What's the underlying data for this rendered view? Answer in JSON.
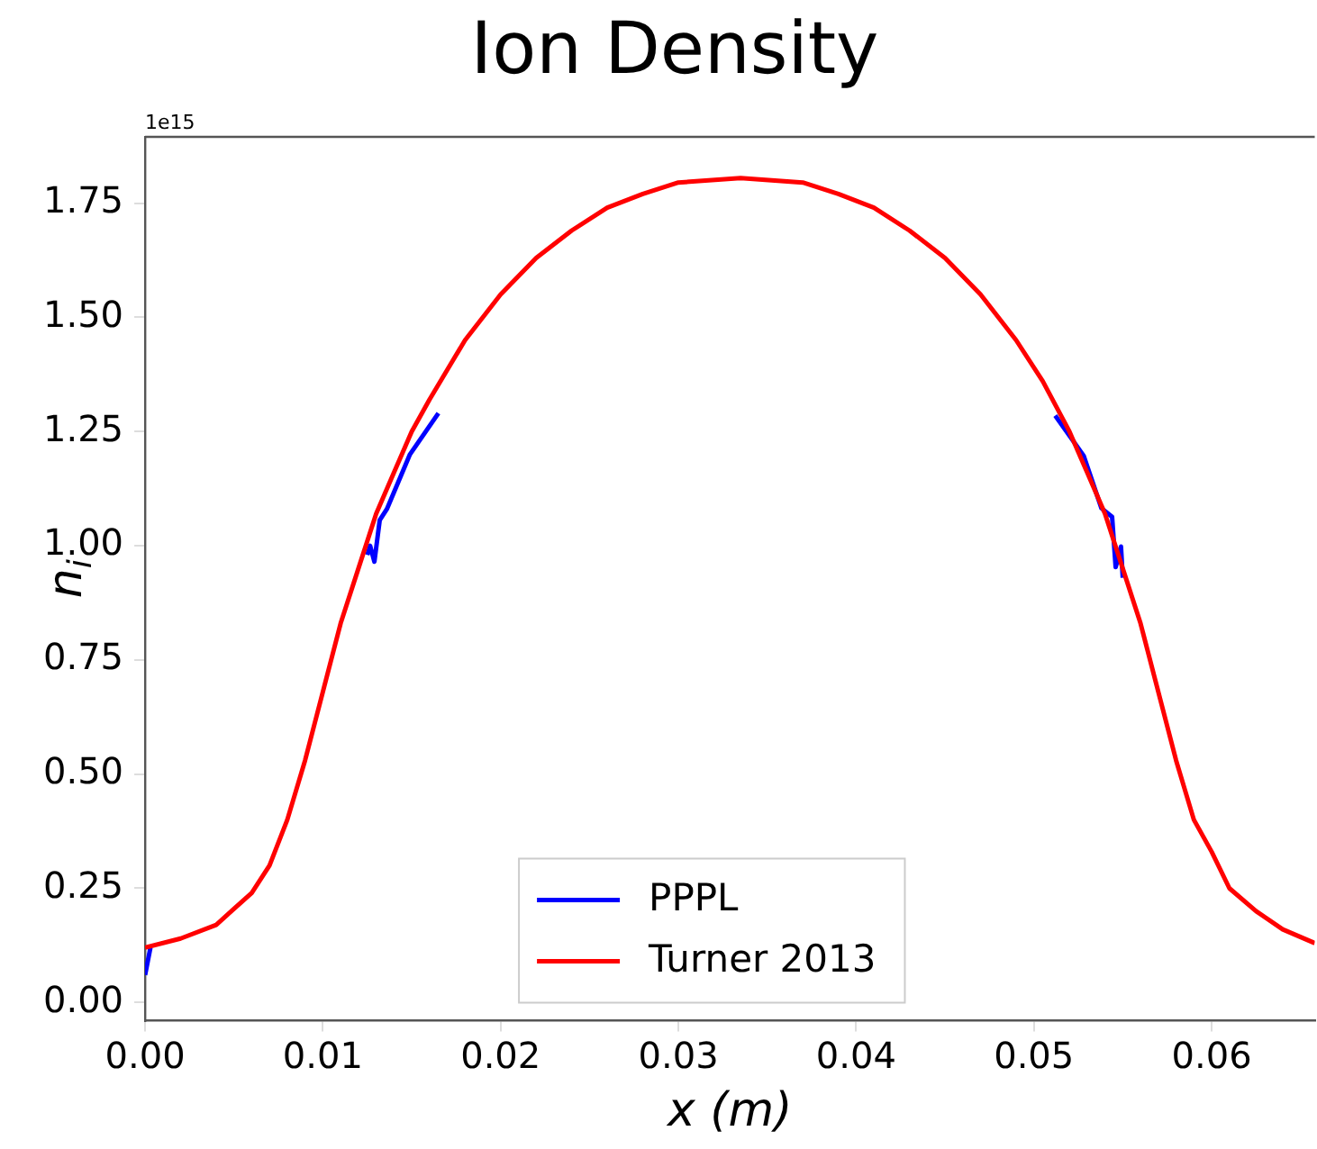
{
  "chart_data": {
    "type": "line",
    "title": "Ion Density",
    "xlabel": "x (m)",
    "ylabel": "n$_{i}$",
    "annotations": [
      "1e15"
    ],
    "xlim": [
      0,
      0.0658
    ],
    "ylim": [
      -0.04,
      1.895
    ],
    "xticks": [
      {
        "value": 0,
        "label": "0.00"
      },
      0.01,
      0.02,
      0.03,
      0.04,
      0.05,
      0.06
    ],
    "yticks": [
      {
        "value": 0,
        "label": "0.00"
      },
      0.25,
      {
        "value": 0.5,
        "label": "0.50"
      },
      0.75,
      {
        "value": 1,
        "label": "1.00"
      },
      1.25,
      {
        "value": 1.5,
        "label": "1.50"
      },
      1.75
    ],
    "grid": false,
    "legend": "bottom",
    "line_style": "solid",
    "marker": "none",
    "series": [
      {
        "name": "PPPL",
        "color": "#0000ff",
        "x": [
          0,
          0.0003,
          0.001,
          0.0125,
          0.01266,
          0.0129,
          0.0132,
          0.0136,
          0.0149,
          0.0165,
          0.017,
          0.05,
          0.0512,
          0.0528,
          0.0538,
          0.0544,
          0.0546,
          0.0549,
          0.055
        ],
        "values": [
          0.06,
          0.12,
          null,
          0.98,
          1.0,
          0.965,
          1.056,
          1.08,
          1.2,
          1.29,
          null,
          null,
          1.285,
          1.197,
          1.082,
          1.063,
          0.953,
          0.998,
          0.93
        ]
      },
      {
        "name": "Turner 2013",
        "color": "#ff0000",
        "x": [
          0,
          0.002,
          0.004,
          0.006,
          0.007,
          0.008,
          0.009,
          0.01,
          0.011,
          0.012,
          0.013,
          0.014,
          0.015,
          0.016,
          0.018,
          0.02,
          0.022,
          0.024,
          0.026,
          0.028,
          0.03,
          0.0335,
          0.037,
          0.039,
          0.041,
          0.043,
          0.045,
          0.047,
          0.049,
          0.0505,
          0.052,
          0.053,
          0.054,
          0.055,
          0.056,
          0.057,
          0.058,
          0.059,
          0.06,
          0.061,
          0.0625,
          0.064,
          0.0658
        ],
        "values": [
          0.12,
          0.14,
          0.17,
          0.24,
          0.3,
          0.4,
          0.53,
          0.68,
          0.83,
          0.95,
          1.07,
          1.16,
          1.25,
          1.32,
          1.45,
          1.55,
          1.63,
          1.69,
          1.74,
          1.77,
          1.795,
          1.805,
          1.795,
          1.77,
          1.74,
          1.69,
          1.63,
          1.55,
          1.45,
          1.36,
          1.25,
          1.16,
          1.07,
          0.95,
          0.83,
          0.68,
          0.53,
          0.4,
          0.33,
          0.25,
          0.2,
          0.16,
          0.13
        ]
      }
    ]
  }
}
